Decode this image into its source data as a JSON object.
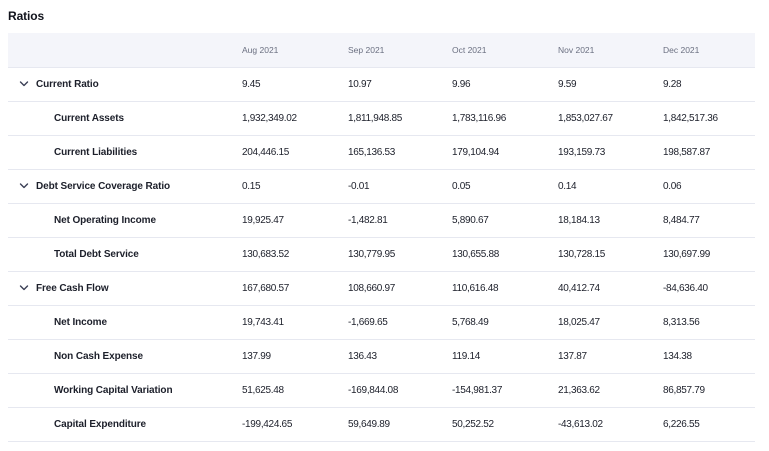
{
  "title": "Ratios",
  "columns": [
    "Aug 2021",
    "Sep 2021",
    "Oct 2021",
    "Nov 2021",
    "Dec 2021"
  ],
  "rows": [
    {
      "label": "Current Ratio",
      "type": "parent",
      "values": [
        "9.45",
        "10.97",
        "9.96",
        "9.59",
        "9.28"
      ]
    },
    {
      "label": "Current Assets",
      "type": "child",
      "values": [
        "1,932,349.02",
        "1,811,948.85",
        "1,783,116.96",
        "1,853,027.67",
        "1,842,517.36"
      ]
    },
    {
      "label": "Current Liabilities",
      "type": "child",
      "values": [
        "204,446.15",
        "165,136.53",
        "179,104.94",
        "193,159.73",
        "198,587.87"
      ]
    },
    {
      "label": "Debt Service Coverage Ratio",
      "type": "parent",
      "values": [
        "0.15",
        "-0.01",
        "0.05",
        "0.14",
        "0.06"
      ]
    },
    {
      "label": "Net Operating Income",
      "type": "child",
      "values": [
        "19,925.47",
        "-1,482.81",
        "5,890.67",
        "18,184.13",
        "8,484.77"
      ]
    },
    {
      "label": "Total Debt Service",
      "type": "child",
      "values": [
        "130,683.52",
        "130,779.95",
        "130,655.88",
        "130,728.15",
        "130,697.99"
      ]
    },
    {
      "label": "Free Cash Flow",
      "type": "parent",
      "values": [
        "167,680.57",
        "108,660.97",
        "110,616.48",
        "40,412.74",
        "-84,636.40"
      ]
    },
    {
      "label": "Net Income",
      "type": "child",
      "values": [
        "19,743.41",
        "-1,669.65",
        "5,768.49",
        "18,025.47",
        "8,313.56"
      ]
    },
    {
      "label": "Non Cash Expense",
      "type": "child",
      "values": [
        "137.99",
        "136.43",
        "119.14",
        "137.87",
        "134.38"
      ]
    },
    {
      "label": "Working Capital Variation",
      "type": "child",
      "values": [
        "51,625.48",
        "-169,844.08",
        "-154,981.37",
        "21,363.62",
        "86,857.79"
      ]
    },
    {
      "label": "Capital Expenditure",
      "type": "child",
      "values": [
        "-199,424.65",
        "59,649.89",
        "50,252.52",
        "-43,613.02",
        "6,226.55"
      ]
    }
  ]
}
